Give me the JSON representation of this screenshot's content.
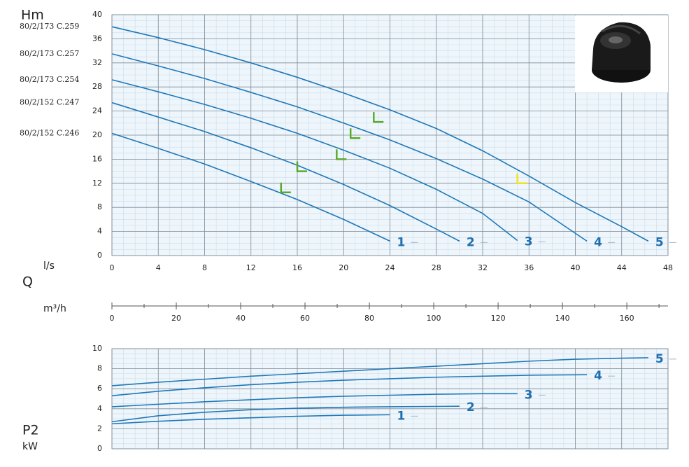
{
  "chart_data": [
    {
      "type": "line",
      "y_label": "Hm",
      "x_label": "l/s",
      "xlim": [
        0,
        48
      ],
      "ylim": [
        0,
        40
      ],
      "xticks": [
        0,
        4,
        8,
        12,
        16,
        20,
        24,
        28,
        32,
        36,
        40,
        44,
        48
      ],
      "yticks": [
        0,
        4,
        8,
        12,
        16,
        20,
        24,
        28,
        32,
        36,
        40
      ],
      "grid": true,
      "show_xtick_labels": true,
      "series": [
        {
          "name": "1",
          "model": "80/2/152 C.246",
          "color": "#1f78b8",
          "x": [
            0,
            4,
            8,
            12,
            16,
            20,
            22,
            24
          ],
          "values": [
            20.3,
            17.8,
            15.2,
            12.3,
            9.3,
            6.0,
            4.2,
            2.4
          ]
        },
        {
          "name": "2",
          "model": "80/2/152 C.247",
          "color": "#1f78b8",
          "x": [
            0,
            4,
            8,
            12,
            16,
            20,
            24,
            28,
            30
          ],
          "values": [
            25.4,
            23.0,
            20.6,
            17.9,
            15.0,
            11.8,
            8.3,
            4.4,
            2.4
          ]
        },
        {
          "name": "3",
          "model": "80/2/173 C.254",
          "color": "#1f78b8",
          "x": [
            0,
            4,
            8,
            12,
            16,
            20,
            24,
            28,
            32,
            35
          ],
          "values": [
            29.2,
            27.2,
            25.1,
            22.8,
            20.3,
            17.5,
            14.5,
            11.0,
            7.0,
            2.5
          ]
        },
        {
          "name": "4",
          "model": "80/2/173 C.257",
          "color": "#1f78b8",
          "x": [
            0,
            4,
            8,
            12,
            16,
            20,
            24,
            28,
            32,
            36,
            41
          ],
          "values": [
            33.5,
            31.5,
            29.4,
            27.1,
            24.7,
            22.0,
            19.2,
            16.1,
            12.7,
            8.9,
            2.4
          ]
        },
        {
          "name": "5",
          "model": "80/2/173 C.259",
          "color": "#1f78b8",
          "x": [
            0,
            4,
            8,
            12,
            16,
            20,
            24,
            28,
            32,
            36,
            40,
            44,
            46.3
          ],
          "values": [
            38.0,
            36.2,
            34.2,
            32.0,
            29.6,
            27.0,
            24.2,
            21.1,
            17.4,
            13.2,
            8.8,
            4.8,
            2.4
          ]
        }
      ],
      "markers": [
        {
          "x": 14.6,
          "y": 10.5,
          "color": "#5aaa2a"
        },
        {
          "x": 16.0,
          "y": 14.0,
          "color": "#5aaa2a"
        },
        {
          "x": 19.4,
          "y": 16.0,
          "color": "#5aaa2a"
        },
        {
          "x": 20.6,
          "y": 19.5,
          "color": "#5aaa2a"
        },
        {
          "x": 22.6,
          "y": 22.2,
          "color": "#5aaa2a"
        },
        {
          "x": 35.0,
          "y": 12.0,
          "color": "#f2e21a"
        }
      ]
    },
    {
      "type": "axis",
      "quantity": "Q",
      "x_label": "m³/h",
      "xlim": [
        0,
        172.8
      ],
      "xticks": [
        0,
        20,
        40,
        60,
        80,
        100,
        120,
        140,
        160
      ],
      "minor_xticks": [
        10,
        30,
        50,
        70,
        90,
        110,
        130,
        150,
        170
      ]
    },
    {
      "type": "line",
      "y_label": "P2",
      "y_unit": "kW",
      "xlim": [
        0,
        48
      ],
      "ylim": [
        0,
        10
      ],
      "xticks": [
        0,
        4,
        8,
        12,
        16,
        20,
        24,
        28,
        32,
        36,
        40,
        44,
        48
      ],
      "yticks": [
        0,
        2,
        4,
        6,
        8,
        10
      ],
      "grid": true,
      "show_xtick_labels": false,
      "series": [
        {
          "name": "1",
          "color": "#1f78b8",
          "x": [
            0,
            4,
            8,
            12,
            16,
            20,
            24
          ],
          "values": [
            2.5,
            2.75,
            2.95,
            3.1,
            3.25,
            3.35,
            3.4
          ]
        },
        {
          "name": "2",
          "color": "#1f78b8",
          "x": [
            0,
            4,
            8,
            12,
            16,
            20,
            24,
            30
          ],
          "values": [
            2.7,
            3.3,
            3.65,
            3.9,
            4.05,
            4.15,
            4.2,
            4.25
          ]
        },
        {
          "name": "3",
          "color": "#1f78b8",
          "x": [
            0,
            4,
            8,
            12,
            16,
            20,
            24,
            28,
            32,
            35
          ],
          "values": [
            4.2,
            4.45,
            4.7,
            4.9,
            5.1,
            5.25,
            5.35,
            5.45,
            5.5,
            5.5
          ]
        },
        {
          "name": "4",
          "color": "#1f78b8",
          "x": [
            0,
            4,
            8,
            12,
            16,
            20,
            24,
            28,
            32,
            36,
            41
          ],
          "values": [
            5.3,
            5.75,
            6.1,
            6.4,
            6.65,
            6.85,
            7.0,
            7.15,
            7.25,
            7.35,
            7.4
          ]
        },
        {
          "name": "5",
          "color": "#1f78b8",
          "x": [
            0,
            4,
            8,
            12,
            16,
            20,
            24,
            28,
            32,
            36,
            40,
            44,
            46.3
          ],
          "values": [
            6.3,
            6.65,
            6.95,
            7.25,
            7.5,
            7.75,
            8.0,
            8.25,
            8.5,
            8.75,
            8.95,
            9.05,
            9.1
          ]
        }
      ]
    }
  ]
}
